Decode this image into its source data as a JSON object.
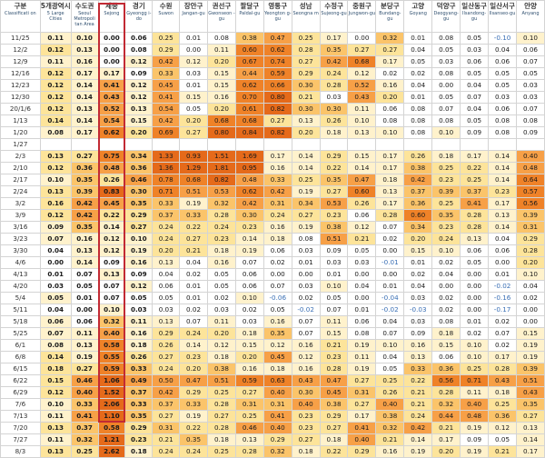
{
  "headers": [
    {
      "kr": "구분",
      "en": "Classificati on"
    },
    {
      "kr": "5개광역시",
      "en": "5 Large Cities"
    },
    {
      "kr": "수도권",
      "en": "Seoul Metropoli tan Area"
    },
    {
      "kr": "세종",
      "en": "Sejong"
    },
    {
      "kr": "경기",
      "en": "Gyeongg i-do"
    },
    {
      "kr": "수원",
      "en": "Suwon"
    },
    {
      "kr": "장안구",
      "en": "Jangan-gu"
    },
    {
      "kr": "권선구",
      "en": "Gwonseon -gu"
    },
    {
      "kr": "팔달구",
      "en": "Paldal-gu"
    },
    {
      "kr": "영통구",
      "en": "Yeongton g-gu"
    },
    {
      "kr": "성남",
      "en": "Seongna m"
    },
    {
      "kr": "수정구",
      "en": "Sujeong-gu"
    },
    {
      "kr": "중원구",
      "en": "Jungwon-gu"
    },
    {
      "kr": "분당구",
      "en": "Bundang-gu"
    },
    {
      "kr": "고양",
      "en": "Goyang"
    },
    {
      "kr": "덕양구",
      "en": "Deogyang-gu"
    },
    {
      "kr": "일산동구",
      "en": "Ilsandong-gu"
    },
    {
      "kr": "일산서구",
      "en": "Ilsanseo-gu"
    },
    {
      "kr": "안양",
      "en": "Anyang"
    }
  ],
  "rows": [
    [
      "11/25",
      "0.11",
      "0.10",
      "0.00",
      "0.06",
      "0.25",
      "0.01",
      "0.08",
      "0.38",
      "0.47",
      "0.25",
      "0.17",
      "0.00",
      "0.32",
      "0.01",
      "0.08",
      "0.05",
      "-0.10",
      "0.10"
    ],
    [
      "12/2",
      "0.12",
      "0.13",
      "0.00",
      "0.08",
      "0.29",
      "0.00",
      "0.11",
      "0.60",
      "0.62",
      "0.28",
      "0.35",
      "0.27",
      "0.27",
      "0.04",
      "0.05",
      "0.03",
      "0.04",
      "0.06"
    ],
    [
      "12/9",
      "0.11",
      "0.16",
      "0.00",
      "0.12",
      "0.42",
      "0.12",
      "0.20",
      "0.67",
      "0.74",
      "0.27",
      "0.42",
      "0.68",
      "0.17",
      "0.05",
      "0.03",
      "0.06",
      "0.06",
      "0.07"
    ],
    [
      "12/16",
      "0.12",
      "0.17",
      "0.17",
      "0.09",
      "0.33",
      "0.03",
      "0.15",
      "0.44",
      "0.59",
      "0.29",
      "0.24",
      "0.12",
      "0.02",
      "0.02",
      "0.08",
      "0.05",
      "0.05",
      "0.05"
    ],
    [
      "12/23",
      "0.12",
      "0.14",
      "0.41",
      "0.12",
      "0.45",
      "0.01",
      "0.15",
      "0.62",
      "0.66",
      "0.30",
      "0.28",
      "0.52",
      "0.16",
      "0.04",
      "0.00",
      "0.04",
      "0.05",
      "0.03"
    ],
    [
      "12/30",
      "0.12",
      "0.14",
      "0.43",
      "0.12",
      "0.41",
      "0.15",
      "0.16",
      "0.70",
      "0.80",
      "0.21",
      "0.03",
      "0.43",
      "0.20",
      "0.01",
      "0.05",
      "0.07",
      "0.03",
      "0.03"
    ],
    [
      "20/1/6",
      "0.12",
      "0.13",
      "0.52",
      "0.13",
      "0.54",
      "0.05",
      "0.20",
      "0.61",
      "0.82",
      "0.30",
      "0.30",
      "0.11",
      "0.06",
      "0.08",
      "0.07",
      "0.04",
      "0.06",
      "0.07"
    ],
    [
      "1/13",
      "0.14",
      "0.14",
      "0.54",
      "0.15",
      "0.42",
      "0.20",
      "0.68",
      "0.68",
      "0.27",
      "0.13",
      "0.26",
      "0.10",
      "0.08",
      "0.08",
      "0.08",
      "0.05",
      "0.08",
      "0.08"
    ],
    [
      "1/20",
      "0.08",
      "0.17",
      "0.62",
      "0.20",
      "0.69",
      "0.27",
      "0.80",
      "0.84",
      "0.82",
      "0.20",
      "0.18",
      "0.13",
      "0.10",
      "0.08",
      "0.10",
      "0.09",
      "0.08",
      "0.09"
    ],
    [
      "1/27",
      "",
      "",
      "",
      "",
      "",
      "",
      "",
      "",
      "",
      "",
      "",
      "",
      "",
      "",
      "",
      "",
      "",
      ""
    ],
    [
      "2/3",
      "0.13",
      "0.27",
      "0.75",
      "0.34",
      "1.33",
      "0.93",
      "1.51",
      "1.69",
      "0.17",
      "0.14",
      "0.29",
      "0.15",
      "0.17",
      "0.26",
      "0.18",
      "0.17",
      "0.14",
      "0.40"
    ],
    [
      "2/10",
      "0.12",
      "0.36",
      "0.48",
      "0.36",
      "1.36",
      "1.29",
      "1.81",
      "0.95",
      "0.16",
      "0.14",
      "0.22",
      "0.14",
      "0.17",
      "0.38",
      "0.25",
      "0.22",
      "0.14",
      "0.48"
    ],
    [
      "2/17",
      "0.10",
      "0.35",
      "0.26",
      "0.46",
      "0.78",
      "0.68",
      "0.82",
      "0.48",
      "0.33",
      "0.25",
      "0.35",
      "0.47",
      "0.18",
      "0.42",
      "0.23",
      "0.25",
      "0.14",
      "0.64"
    ],
    [
      "2/24",
      "0.13",
      "0.39",
      "0.83",
      "0.30",
      "0.71",
      "0.51",
      "0.53",
      "0.62",
      "0.42",
      "0.19",
      "0.27",
      "0.60",
      "0.13",
      "0.37",
      "0.39",
      "0.37",
      "0.23",
      "0.57"
    ],
    [
      "3/2",
      "0.16",
      "0.42",
      "0.45",
      "0.35",
      "0.33",
      "0.19",
      "0.32",
      "0.42",
      "0.31",
      "0.34",
      "0.53",
      "0.26",
      "0.17",
      "0.36",
      "0.25",
      "0.41",
      "0.17",
      "0.56"
    ],
    [
      "3/9",
      "0.12",
      "0.42",
      "0.22",
      "0.29",
      "0.37",
      "0.33",
      "0.28",
      "0.30",
      "0.24",
      "0.27",
      "0.23",
      "0.06",
      "0.28",
      "0.60",
      "0.35",
      "0.28",
      "0.13",
      "0.39"
    ],
    [
      "3/16",
      "0.09",
      "0.35",
      "0.14",
      "0.27",
      "0.24",
      "0.22",
      "0.24",
      "0.23",
      "0.16",
      "0.19",
      "0.38",
      "0.12",
      "0.07",
      "0.34",
      "0.23",
      "0.28",
      "0.14",
      "0.31"
    ],
    [
      "3/23",
      "0.07",
      "0.16",
      "0.12",
      "0.10",
      "0.24",
      "0.27",
      "0.23",
      "0.14",
      "0.18",
      "0.08",
      "0.51",
      "0.21",
      "0.02",
      "0.20",
      "0.24",
      "0.13",
      "0.04",
      "0.29"
    ],
    [
      "3/30",
      "0.04",
      "0.13",
      "0.12",
      "0.19",
      "0.20",
      "0.21",
      "0.18",
      "0.19",
      "0.06",
      "0.03",
      "0.09",
      "0.05",
      "0.00",
      "0.15",
      "0.10",
      "0.06",
      "0.06",
      "0.28"
    ],
    [
      "4/6",
      "0.00",
      "0.14",
      "0.09",
      "0.16",
      "0.13",
      "0.04",
      "0.16",
      "0.07",
      "0.02",
      "0.01",
      "0.03",
      "0.03",
      "-0.01",
      "0.01",
      "0.02",
      "0.05",
      "0.00",
      "0.20"
    ],
    [
      "4/13",
      "0.01",
      "0.07",
      "0.13",
      "0.09",
      "0.04",
      "0.02",
      "0.05",
      "0.06",
      "0.00",
      "0.00",
      "0.01",
      "0.00",
      "0.00",
      "0.02",
      "0.04",
      "0.00",
      "0.01",
      "0.10"
    ],
    [
      "4/20",
      "0.03",
      "0.05",
      "0.07",
      "0.12",
      "0.06",
      "0.01",
      "0.05",
      "0.06",
      "0.07",
      "0.03",
      "0.10",
      "0.04",
      "0.01",
      "0.04",
      "0.00",
      "0.00",
      "-0.02",
      "0.04"
    ],
    [
      "5/4",
      "0.05",
      "0.01",
      "0.07",
      "0.05",
      "0.05",
      "0.01",
      "0.02",
      "0.10",
      "-0.06",
      "0.02",
      "0.05",
      "0.00",
      "-0.04",
      "0.03",
      "0.02",
      "0.00",
      "-0.16",
      "0.02"
    ],
    [
      "5/11",
      "0.04",
      "0.00",
      "0.10",
      "0.03",
      "0.03",
      "0.02",
      "0.03",
      "0.02",
      "0.05",
      "-0.02",
      "0.07",
      "0.01",
      "-0.02",
      "-0.03",
      "0.02",
      "0.00",
      "-0.17",
      "0.00"
    ],
    [
      "5/18",
      "0.06",
      "0.06",
      "0.32",
      "0.11",
      "0.13",
      "0.07",
      "0.11",
      "0.03",
      "0.16",
      "0.07",
      "0.11",
      "0.06",
      "0.04",
      "0.03",
      "0.08",
      "0.01",
      "0.02",
      "0.00"
    ],
    [
      "5/25",
      "0.07",
      "0.11",
      "0.40",
      "0.16",
      "0.29",
      "0.24",
      "0.20",
      "0.18",
      "0.35",
      "0.07",
      "0.15",
      "0.08",
      "0.07",
      "0.09",
      "0.18",
      "0.02",
      "0.07",
      "0.15"
    ],
    [
      "6/1",
      "0.08",
      "0.13",
      "0.58",
      "0.18",
      "0.26",
      "0.14",
      "0.12",
      "0.15",
      "0.12",
      "0.16",
      "0.21",
      "0.19",
      "0.10",
      "0.16",
      "0.15",
      "0.10",
      "0.02",
      "0.19"
    ],
    [
      "6/8",
      "0.14",
      "0.19",
      "0.55",
      "0.26",
      "0.27",
      "0.23",
      "0.18",
      "0.20",
      "0.45",
      "0.12",
      "0.23",
      "0.11",
      "0.04",
      "0.13",
      "0.06",
      "0.10",
      "0.17",
      "0.19"
    ],
    [
      "6/15",
      "0.18",
      "0.27",
      "0.59",
      "0.33",
      "0.24",
      "0.20",
      "0.38",
      "0.16",
      "0.18",
      "0.16",
      "0.28",
      "0.19",
      "0.05",
      "0.33",
      "0.36",
      "0.25",
      "0.28",
      "0.39"
    ],
    [
      "6/22",
      "0.15",
      "0.46",
      "1.06",
      "0.49",
      "0.50",
      "0.47",
      "0.51",
      "0.59",
      "0.63",
      "0.43",
      "0.47",
      "0.27",
      "0.25",
      "0.22",
      "0.56",
      "0.71",
      "0.43",
      "0.51"
    ],
    [
      "6/29",
      "0.12",
      "0.40",
      "1.52",
      "0.37",
      "0.42",
      "0.29",
      "0.25",
      "0.27",
      "0.40",
      "0.30",
      "0.45",
      "0.31",
      "0.26",
      "0.21",
      "0.28",
      "0.11",
      "0.18",
      "0.43"
    ],
    [
      "7/6",
      "0.10",
      "0.33",
      "2.06",
      "0.33",
      "0.37",
      "0.33",
      "0.28",
      "0.31",
      "0.31",
      "0.40",
      "0.38",
      "0.27",
      "0.40",
      "0.21",
      "0.32",
      "0.40",
      "0.25",
      "0.35"
    ],
    [
      "7/13",
      "0.11",
      "0.41",
      "1.10",
      "0.35",
      "0.27",
      "0.19",
      "0.27",
      "0.25",
      "0.41",
      "0.23",
      "0.29",
      "0.17",
      "0.38",
      "0.24",
      "0.44",
      "0.48",
      "0.36",
      "0.27"
    ],
    [
      "7/20",
      "0.13",
      "0.37",
      "0.58",
      "0.29",
      "0.31",
      "0.22",
      "0.28",
      "0.46",
      "0.40",
      "0.23",
      "0.27",
      "0.41",
      "0.32",
      "0.42",
      "0.21",
      "0.19",
      "0.12",
      "0.13"
    ],
    [
      "7/27",
      "0.11",
      "0.32",
      "1.21",
      "0.23",
      "0.21",
      "0.35",
      "0.18",
      "0.13",
      "0.29",
      "0.27",
      "0.18",
      "0.40",
      "0.21",
      "0.14",
      "0.17",
      "0.09",
      "0.05",
      "0.14"
    ],
    [
      "8/3",
      "0.13",
      "0.25",
      "2.62",
      "0.18",
      "0.24",
      "0.24",
      "0.25",
      "0.28",
      "0.32",
      "0.18",
      "0.22",
      "0.29",
      "0.16",
      "0.19",
      "0.20",
      "0.19",
      "0.21",
      "0.17"
    ]
  ]
}
